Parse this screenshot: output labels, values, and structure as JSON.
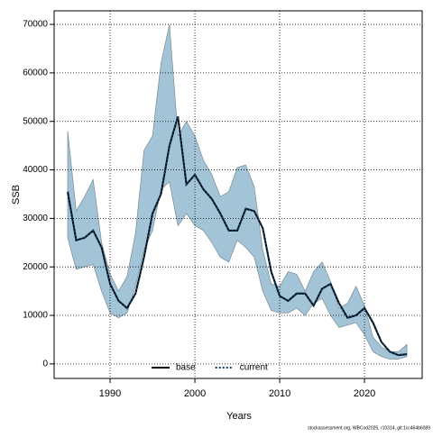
{
  "chart_data": {
    "type": "line",
    "x_label": "Years",
    "y_label": "SSB",
    "footnote": "stockassessment.org, WBCod2025, r10314, git:1cc464b6089",
    "x": [
      1985,
      1986,
      1987,
      1988,
      1989,
      1990,
      1991,
      1992,
      1993,
      1994,
      1995,
      1996,
      1997,
      1998,
      1999,
      2000,
      2001,
      2002,
      2003,
      2004,
      2005,
      2006,
      2007,
      2008,
      2009,
      2010,
      2011,
      2012,
      2013,
      2014,
      2015,
      2016,
      2017,
      2018,
      2019,
      2020,
      2021,
      2022,
      2023,
      2024,
      2025
    ],
    "series": [
      {
        "name": "base",
        "color": "#000000",
        "dash": false,
        "values": [
          35500,
          25500,
          26000,
          27500,
          24000,
          16500,
          13000,
          11500,
          14500,
          22000,
          31000,
          35000,
          45000,
          51000,
          37000,
          39000,
          36000,
          34000,
          31000,
          27500,
          27500,
          32000,
          31500,
          28000,
          19000,
          14000,
          13000,
          14500,
          14500,
          12000,
          15500,
          16500,
          12500,
          9500,
          10000,
          11500,
          8500,
          4500,
          2500,
          1800,
          2000
        ]
      },
      {
        "name": "current",
        "color": "#0b3d66",
        "dash": true,
        "values": [
          35500,
          25500,
          26000,
          27500,
          24000,
          16500,
          13000,
          11500,
          14500,
          22000,
          31000,
          35000,
          45000,
          51000,
          37000,
          39000,
          36000,
          34000,
          31000,
          27500,
          27500,
          32000,
          31500,
          28000,
          19000,
          14000,
          13000,
          14500,
          14500,
          12000,
          15500,
          16500,
          12500,
          9500,
          10000,
          11500,
          8500,
          4500,
          2500,
          1800,
          2000
        ]
      }
    ],
    "band": {
      "color": "#a2c4d6",
      "upper": [
        48000,
        31500,
        34500,
        38000,
        25000,
        18500,
        15000,
        18000,
        27000,
        44000,
        47000,
        62000,
        70000,
        47000,
        50000,
        47000,
        42000,
        39000,
        34500,
        35500,
        40500,
        41000,
        36500,
        23500,
        16500,
        16000,
        19000,
        18500,
        15000,
        19000,
        21000,
        17000,
        11500,
        12500,
        16000,
        12000,
        5500,
        3500,
        2500,
        2500,
        4000
      ],
      "lower": [
        26000,
        19500,
        20000,
        20500,
        15000,
        10500,
        9500,
        10500,
        16000,
        23500,
        27500,
        36000,
        37500,
        28500,
        31000,
        28500,
        27500,
        25000,
        22000,
        21000,
        25500,
        24000,
        22000,
        15000,
        11000,
        10500,
        10500,
        11500,
        10000,
        12500,
        13500,
        10000,
        7500,
        8000,
        8500,
        6000,
        2500,
        1500,
        1000,
        1000,
        1500
      ]
    },
    "xlim": [
      1983.4,
      2026.8
    ],
    "xticks": [
      1990,
      2000,
      2010,
      2020
    ],
    "ylim": [
      -3000,
      72800
    ],
    "yticks": [
      0,
      10000,
      20000,
      30000,
      40000,
      50000,
      60000,
      70000
    ],
    "grid": true,
    "legend": "bottom"
  }
}
